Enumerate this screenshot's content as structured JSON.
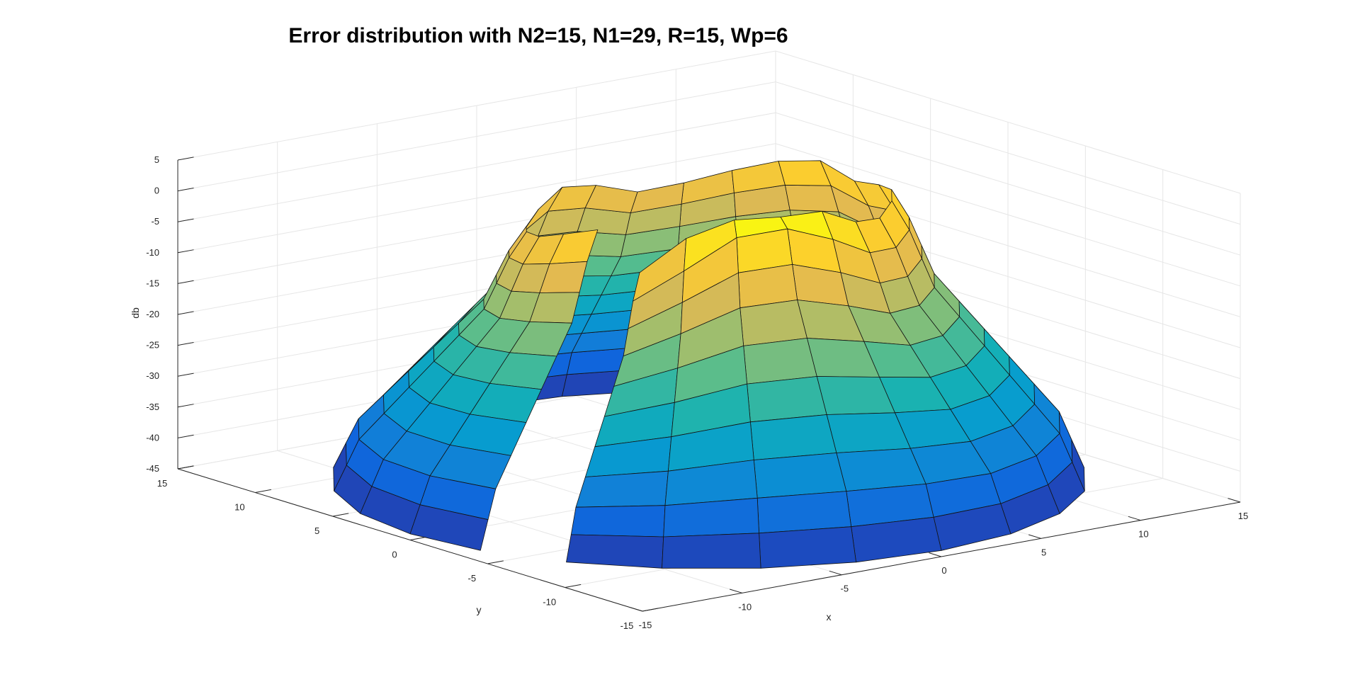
{
  "chart_data": {
    "type": "surface",
    "title": "Error distribution with N2=15, N1=29, R=15, Wp=6",
    "xlabel": "x",
    "ylabel": "y",
    "zlabel": "db",
    "xlim": [
      -15,
      15
    ],
    "ylim": [
      -15,
      15
    ],
    "zlim": [
      -45,
      5
    ],
    "x_ticks": [
      -15,
      -10,
      -5,
      0,
      5,
      10,
      15
    ],
    "y_ticks": [
      -15,
      -10,
      -5,
      0,
      5,
      10,
      15
    ],
    "z_ticks": [
      -45,
      -40,
      -35,
      -30,
      -25,
      -20,
      -15,
      -10,
      -5,
      0,
      5
    ],
    "grid": true,
    "colormap": "parula",
    "surface": {
      "r": [
        15,
        14.5,
        14,
        13,
        12,
        11,
        10,
        9,
        8.5,
        8,
        7.3
      ],
      "db": [
        -44,
        -40,
        -36,
        -32,
        -28,
        -24,
        -20,
        -16,
        -12,
        -8,
        -4
      ],
      "theta_deg": [
        -150,
        -135,
        -120,
        -105,
        -90,
        -75,
        -60,
        -45,
        -30,
        -15,
        0,
        15,
        30,
        45,
        60,
        75,
        90,
        105,
        120,
        135,
        150,
        165,
        180,
        195
      ],
      "amplitude_db": [
        0,
        6,
        12,
        13,
        10,
        6,
        5,
        6,
        6,
        5,
        4,
        6,
        5,
        3,
        1,
        0,
        2,
        3,
        1,
        0,
        1,
        2,
        4,
        6
      ]
    }
  }
}
